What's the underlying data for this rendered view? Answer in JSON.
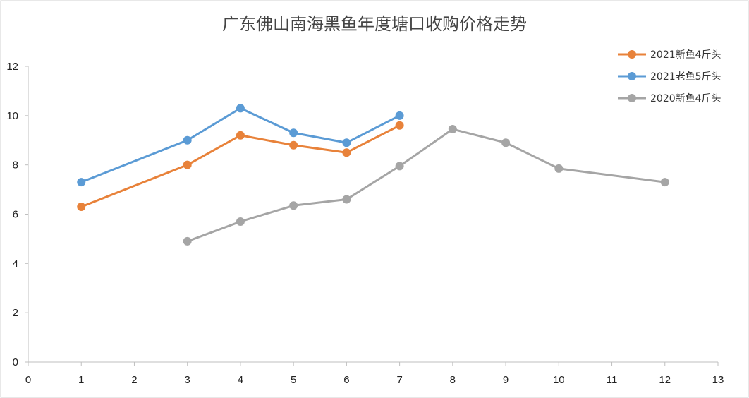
{
  "chart_data": {
    "type": "line",
    "title": "广东佛山南海黑鱼年度塘口收购价格走势",
    "xlabel": "",
    "ylabel": "",
    "xlim": [
      0,
      13
    ],
    "ylim": [
      0,
      12
    ],
    "x_ticks": [
      "0",
      "1",
      "2",
      "3",
      "4",
      "5",
      "6",
      "7",
      "8",
      "9",
      "10",
      "11",
      "12",
      "13"
    ],
    "y_ticks": [
      "0",
      "2",
      "4",
      "6",
      "8",
      "10",
      "12"
    ],
    "grid": false,
    "legend_position": "top-right",
    "series": [
      {
        "name": "2021新鱼4斤头",
        "color": "#E8823A",
        "points": [
          [
            1,
            6.3
          ],
          [
            3,
            8.0
          ],
          [
            4,
            9.2
          ],
          [
            5,
            8.8
          ],
          [
            6,
            8.5
          ],
          [
            7,
            9.6
          ]
        ]
      },
      {
        "name": "2021老鱼5斤头",
        "color": "#5B9BD5",
        "points": [
          [
            1,
            7.3
          ],
          [
            3,
            9.0
          ],
          [
            4,
            10.3
          ],
          [
            5,
            9.3
          ],
          [
            6,
            8.9
          ],
          [
            7,
            10.0
          ]
        ]
      },
      {
        "name": "2020新鱼4斤头",
        "color": "#A5A5A5",
        "points": [
          [
            3,
            4.9
          ],
          [
            4,
            5.7
          ],
          [
            5,
            6.35
          ],
          [
            6,
            6.6
          ],
          [
            7,
            7.95
          ],
          [
            8,
            9.45
          ],
          [
            9,
            8.9
          ],
          [
            10,
            7.85
          ],
          [
            12,
            7.3
          ]
        ]
      }
    ]
  }
}
